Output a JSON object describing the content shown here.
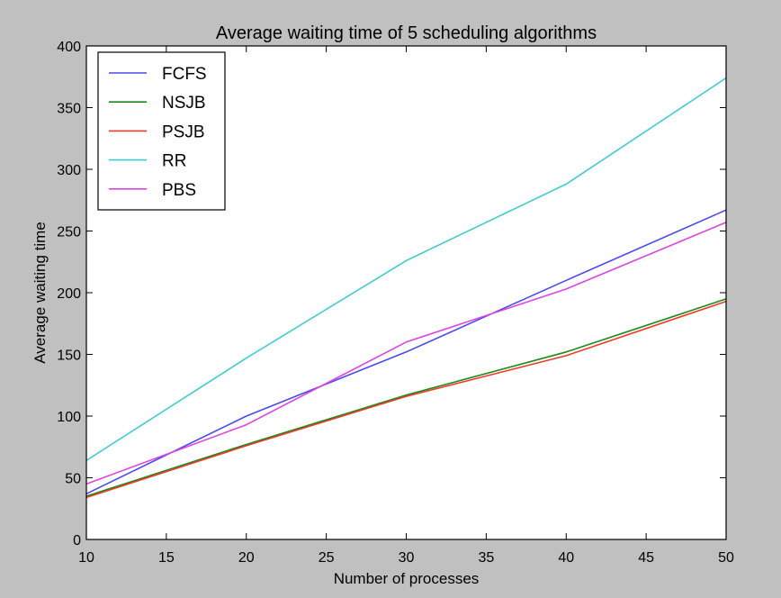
{
  "chart_data": {
    "type": "line",
    "title": "Average waiting time of 5 scheduling algorithms",
    "xlabel": "Number of processes",
    "ylabel": "Average waiting time",
    "x": [
      10,
      20,
      30,
      40,
      50
    ],
    "xlim": [
      10,
      50
    ],
    "ylim": [
      0,
      400
    ],
    "xticks": [
      10,
      15,
      20,
      25,
      30,
      35,
      40,
      45,
      50
    ],
    "yticks": [
      0,
      50,
      100,
      150,
      200,
      250,
      300,
      350,
      400
    ],
    "grid": false,
    "legend_position": "top-left",
    "series": [
      {
        "name": "FCFS",
        "color": "#4a4aee",
        "values": [
          37,
          100,
          152,
          210,
          267
        ]
      },
      {
        "name": "NSJB",
        "color": "#1a8a1a",
        "values": [
          35,
          77,
          117,
          152,
          195
        ]
      },
      {
        "name": "PSJB",
        "color": "#ee3a2a",
        "values": [
          34,
          76,
          116,
          149,
          193
        ]
      },
      {
        "name": "RR",
        "color": "#44cccc",
        "values": [
          64,
          147,
          226,
          288,
          374
        ]
      },
      {
        "name": "PBS",
        "color": "#dd44dd",
        "values": [
          45,
          93,
          160,
          203,
          257
        ]
      }
    ]
  }
}
